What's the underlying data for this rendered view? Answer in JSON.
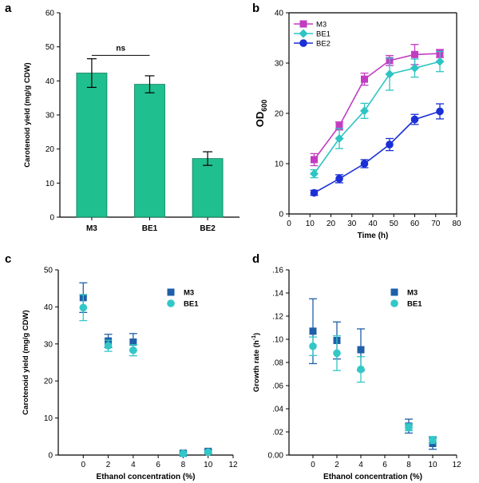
{
  "panels": {
    "a": "a",
    "b": "b",
    "c": "c",
    "d": "d"
  },
  "chart_data": [
    {
      "id": "a",
      "type": "bar",
      "title": "",
      "xlabel": "",
      "ylabel": "Carotenoid yield (mg/g CDW)",
      "categories": [
        "M3",
        "BE1",
        "BE2"
      ],
      "values": [
        42.3,
        39.0,
        17.2
      ],
      "errors": [
        4.2,
        2.5,
        2.0
      ],
      "ylim": [
        0,
        60
      ],
      "yticks": [
        0,
        10,
        20,
        30,
        40,
        50,
        60
      ],
      "bar_color": "#1fbf8f",
      "annotation": {
        "text": "ns",
        "between": [
          "M3",
          "BE1"
        ],
        "y": 47.5
      },
      "grid": false
    },
    {
      "id": "b",
      "type": "line",
      "title": "",
      "xlabel": "Time (h)",
      "ylabel": "OD",
      "ylabel_sub": "600",
      "xlim": [
        0,
        80
      ],
      "ylim": [
        0,
        40
      ],
      "xticks": [
        0,
        10,
        20,
        30,
        40,
        50,
        60,
        70,
        80
      ],
      "yticks": [
        0,
        10,
        20,
        30,
        40
      ],
      "legend_position": "top-left",
      "grid": false,
      "series": [
        {
          "name": "M3",
          "color": "#c23cc2",
          "marker": "square",
          "x": [
            12,
            24,
            36,
            48,
            60,
            72
          ],
          "y": [
            10.8,
            17.5,
            26.8,
            30.5,
            31.7,
            31.9
          ],
          "err": [
            1.2,
            0.8,
            1.2,
            1.0,
            2.0,
            0.8
          ]
        },
        {
          "name": "BE1",
          "color": "#2ec4c4",
          "marker": "diamond",
          "x": [
            12,
            24,
            36,
            48,
            60,
            72
          ],
          "y": [
            8.0,
            15.0,
            20.5,
            27.8,
            29.0,
            30.3
          ],
          "err": [
            0.8,
            2.0,
            1.5,
            3.2,
            1.8,
            2.0
          ]
        },
        {
          "name": "BE2",
          "color": "#1a2fd6",
          "marker": "circle",
          "x": [
            12,
            24,
            36,
            48,
            60,
            72
          ],
          "y": [
            4.2,
            7.0,
            10.0,
            13.8,
            18.8,
            20.4
          ],
          "err": [
            0.5,
            0.8,
            0.8,
            1.2,
            1.0,
            1.5
          ]
        }
      ]
    },
    {
      "id": "c",
      "type": "scatter",
      "title": "",
      "xlabel": "Ethanol concentration (%)",
      "ylabel": "Carotenoid yield (mg/g CDW)",
      "xlim": [
        -2,
        12
      ],
      "ylim": [
        0,
        50
      ],
      "xticks": [
        0,
        2,
        4,
        6,
        8,
        10,
        12
      ],
      "yticks": [
        0,
        10,
        20,
        30,
        40,
        50
      ],
      "legend_position": "top-right",
      "grid": false,
      "series": [
        {
          "name": "M3",
          "color": "#1f5fa8",
          "marker": "square",
          "x": [
            0,
            2,
            4,
            8,
            10
          ],
          "y": [
            42.5,
            30.8,
            30.5,
            0.5,
            1.0
          ],
          "err": [
            4.0,
            1.8,
            2.3,
            0.3,
            0.4
          ]
        },
        {
          "name": "BE1",
          "color": "#33c7c7",
          "marker": "circle",
          "x": [
            0,
            2,
            4,
            8,
            10
          ],
          "y": [
            39.8,
            29.5,
            28.3,
            0.4,
            0.8
          ],
          "err": [
            3.5,
            1.5,
            1.5,
            0.3,
            0.3
          ]
        }
      ]
    },
    {
      "id": "d",
      "type": "scatter",
      "title": "",
      "xlabel": "Ethanol concentration (%)",
      "ylabel": "Growth rate (h",
      "ylabel_sup": "-1",
      "ylabel_tail": ")",
      "xlim": [
        -2,
        12
      ],
      "ylim": [
        0,
        0.16
      ],
      "xticks": [
        0,
        2,
        4,
        6,
        8,
        10,
        12
      ],
      "yticks": [
        0,
        0.02,
        0.04,
        0.06,
        0.08,
        0.1,
        0.12,
        0.14,
        0.16
      ],
      "ytick_labels": [
        "0.00",
        ".02",
        ".04",
        ".06",
        ".08",
        ".10",
        ".12",
        ".14",
        ".16"
      ],
      "legend_position": "top-right",
      "grid": false,
      "series": [
        {
          "name": "M3",
          "color": "#1f5fa8",
          "marker": "square",
          "x": [
            0,
            2,
            4,
            8,
            10
          ],
          "y": [
            0.107,
            0.099,
            0.091,
            0.025,
            0.01
          ],
          "err": [
            0.028,
            0.016,
            0.018,
            0.006,
            0.005
          ]
        },
        {
          "name": "BE1",
          "color": "#33c7c7",
          "marker": "circle",
          "x": [
            0,
            2,
            4,
            8,
            10
          ],
          "y": [
            0.094,
            0.088,
            0.074,
            0.024,
            0.013
          ],
          "err": [
            0.008,
            0.015,
            0.011,
            0.003,
            0.003
          ]
        }
      ]
    }
  ]
}
